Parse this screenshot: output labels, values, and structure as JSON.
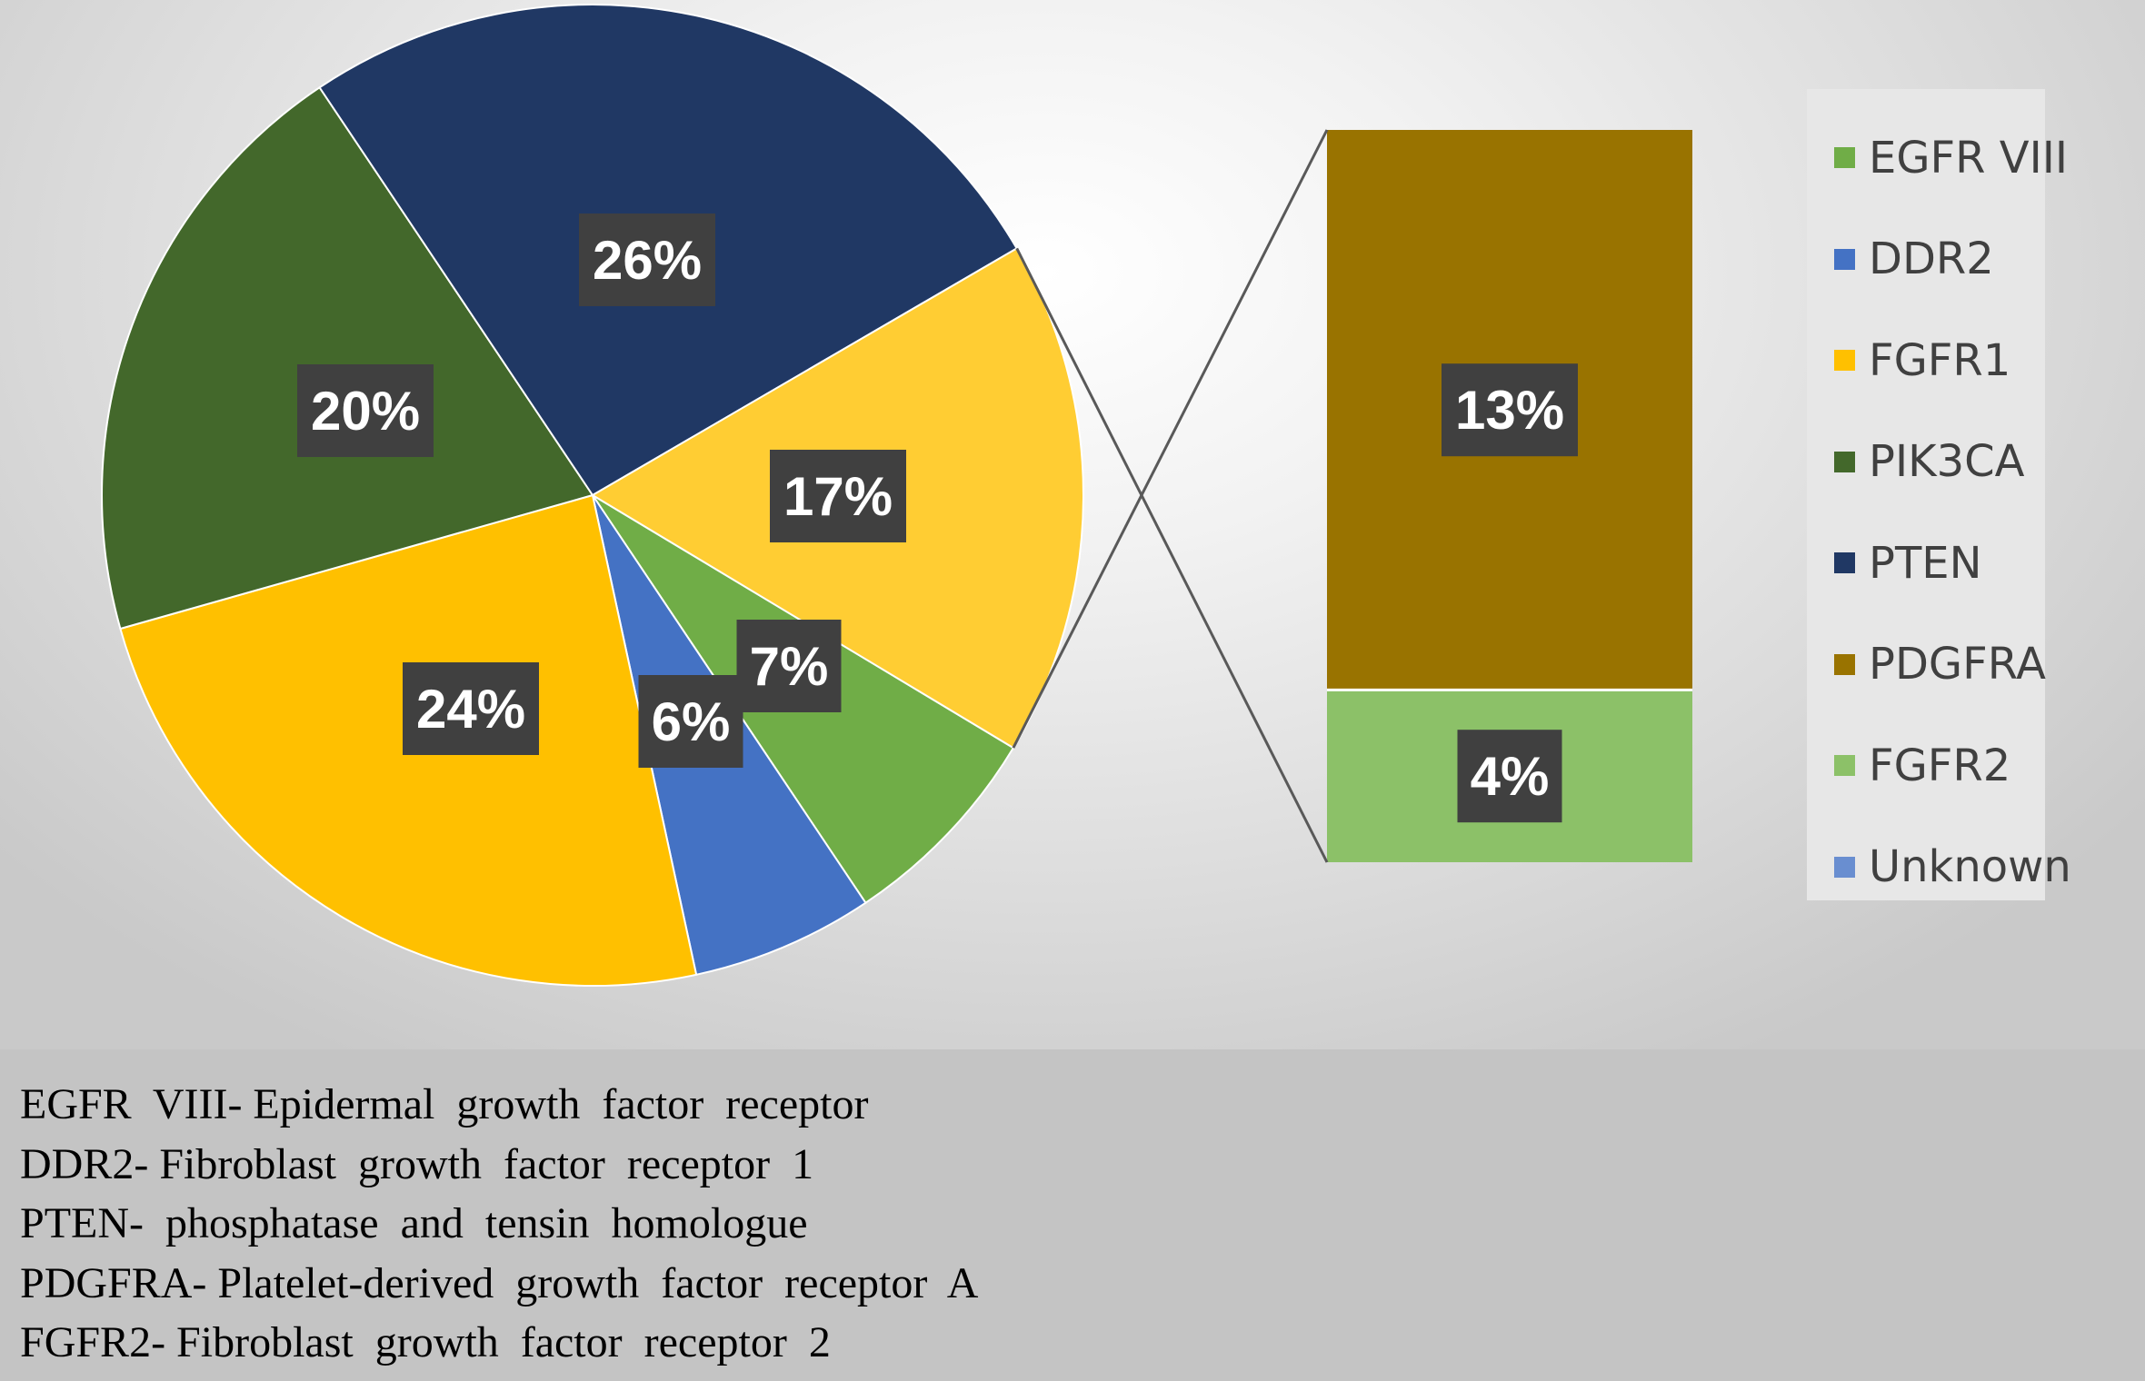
{
  "chart_data": {
    "type": "pie",
    "subtype": "bar-of-pie",
    "slices": [
      {
        "name": "EGFR VIII",
        "value": 7,
        "label": "7%",
        "color": "#70ad47"
      },
      {
        "name": "DDR2",
        "value": 6,
        "label": "6%",
        "color": "#4472c4"
      },
      {
        "name": "FGFR1",
        "value": 24,
        "label": "24%",
        "color": "#ffc000"
      },
      {
        "name": "PIK3CA",
        "value": 20,
        "label": "20%",
        "color": "#43682b"
      },
      {
        "name": "PTEN",
        "value": 26,
        "label": "26%",
        "color": "#203864"
      },
      {
        "name": "Unknown",
        "value": 17,
        "label": "17%",
        "color": "#ffcd33",
        "split_to_bar": true
      }
    ],
    "bar_breakdown": [
      {
        "name": "PDGFRA",
        "value": 13,
        "label": "13%",
        "color": "#997300"
      },
      {
        "name": "FGFR2",
        "value": 4,
        "label": "4%",
        "color": "#8cc168"
      }
    ],
    "legend": {
      "position": "right",
      "items": [
        {
          "name": "EGFR VIII",
          "color": "#70ad47"
        },
        {
          "name": "DDR2",
          "color": "#4472c4"
        },
        {
          "name": "FGFR1",
          "color": "#ffc000"
        },
        {
          "name": "PIK3CA",
          "color": "#43682b"
        },
        {
          "name": "PTEN",
          "color": "#203864"
        },
        {
          "name": "PDGFRA",
          "color": "#997300"
        },
        {
          "name": "FGFR2",
          "color": "#8cc168"
        },
        {
          "name": "Unknown",
          "color": "#698ed0"
        }
      ]
    }
  },
  "footnotes": [
    "EGFR  VIII- Epidermal  growth  factor  receptor",
    "DDR2- Fibroblast  growth  factor  receptor  1",
    "PTEN-  phosphatase  and  tensin  homologue",
    "PDGFRA- Platelet-derived  growth  factor  receptor  A",
    "FGFR2- Fibroblast  growth  factor  receptor  2"
  ]
}
